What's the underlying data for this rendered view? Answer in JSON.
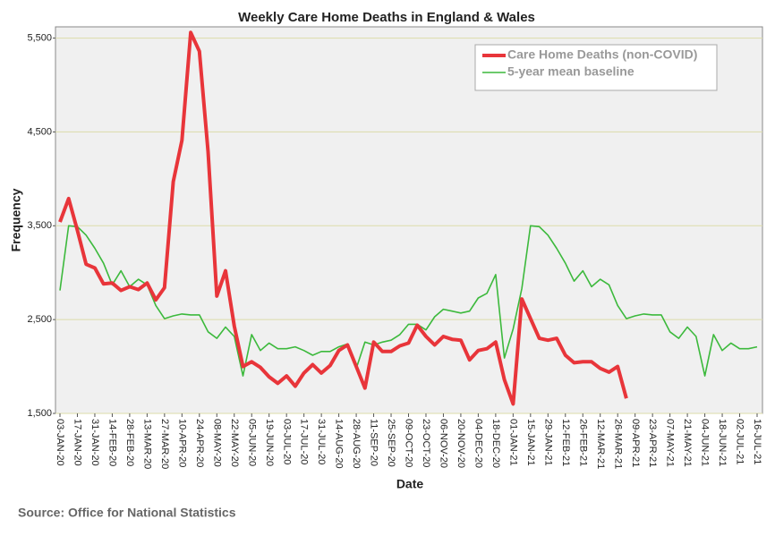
{
  "chart_data": {
    "type": "line",
    "title": "Weekly Care Home Deaths in England & Wales",
    "x_label": "Date",
    "y_label": "Frequency",
    "source": "Source: Office for National Statistics",
    "categories": [
      "03-JAN-20",
      null,
      "17-JAN-20",
      null,
      "31-JAN-20",
      null,
      "14-FEB-20",
      null,
      "28-FEB-20",
      null,
      "13-MAR-20",
      null,
      "27-MAR-20",
      null,
      "10-APR-20",
      null,
      "24-APR-20",
      null,
      "08-MAY-20",
      null,
      "22-MAY-20",
      null,
      "05-JUN-20",
      null,
      "19-JUN-20",
      null,
      "03-JUL-20",
      null,
      "17-JUL-20",
      null,
      "31-JUL-20",
      null,
      "14-AUG-20",
      null,
      "28-AUG-20",
      null,
      "11-SEP-20",
      null,
      "25-SEP-20",
      null,
      "09-OCT-20",
      null,
      "23-OCT-20",
      null,
      "06-NOV-20",
      null,
      "20-NOV-20",
      null,
      "04-DEC-20",
      null,
      "18-DEC-20",
      null,
      "01-JAN-21",
      null,
      "15-JAN-21",
      null,
      "29-JAN-21",
      null,
      "12-FEB-21",
      null,
      "26-FEB-21",
      null,
      "12-MAR-21",
      null,
      "26-MAR-21",
      null,
      "09-APR-21",
      null,
      "23-APR-21",
      null,
      "07-MAY-21",
      null,
      "21-MAY-21",
      null,
      "04-JUN-21",
      null,
      "18-JUN-21",
      null,
      "02-JUL-21",
      null,
      "16-JUL-21"
    ],
    "series": [
      {
        "name": "Care Home Deaths (non-COVID)",
        "color": "#e8353a",
        "width": 4,
        "values": [
          3540,
          3790,
          3450,
          3090,
          3050,
          2880,
          2890,
          2810,
          2850,
          2820,
          2890,
          2710,
          2840,
          3970,
          4410,
          5560,
          5360,
          4290,
          2750,
          3020,
          2430,
          2000,
          2050,
          1990,
          1890,
          1820,
          1900,
          1790,
          1930,
          2020,
          1930,
          2010,
          2170,
          2230,
          2000,
          1770,
          2260,
          2160,
          2160,
          2220,
          2250,
          2440,
          2320,
          2230,
          2320,
          2290,
          2280,
          2070,
          2170,
          2190,
          2260,
          1860,
          1600,
          2720,
          2510,
          2300,
          2280,
          2300,
          2120,
          2040,
          2050,
          2050,
          1980,
          1940,
          2000,
          1660,
          null,
          null,
          null,
          null,
          null,
          null,
          null,
          null,
          null,
          null,
          null,
          null,
          null,
          null,
          null
        ]
      },
      {
        "name": "5-year mean baseline",
        "color": "#3cb93c",
        "width": 1.6,
        "values": [
          2810,
          3500,
          3490,
          3400,
          3260,
          3100,
          2870,
          3020,
          2850,
          2930,
          2870,
          2650,
          2510,
          2540,
          2560,
          2550,
          2550,
          2370,
          2300,
          2420,
          2320,
          1900,
          2340,
          2170,
          2250,
          2190,
          2190,
          2210,
          2170,
          2120,
          2160,
          2160,
          2210,
          2240,
          1980,
          2260,
          2230,
          2260,
          2280,
          2340,
          2450,
          2450,
          2390,
          2530,
          2610,
          2590,
          2570,
          2590,
          2730,
          2780,
          2980,
          2090,
          2400,
          2830,
          3500,
          3490,
          3400,
          3260,
          3100,
          2910,
          3020,
          2850,
          2930,
          2870,
          2650,
          2510,
          2540,
          2560,
          2550,
          2550,
          2370,
          2300,
          2420,
          2320,
          1900,
          2340,
          2170,
          2250,
          2190,
          2190,
          2210
        ]
      }
    ],
    "ylim": [
      1500,
      5620
    ],
    "yticks": [
      {
        "value": 1500,
        "label": "1,500"
      },
      {
        "value": 2500,
        "label": "2,500"
      },
      {
        "value": 3500,
        "label": "3,500"
      },
      {
        "value": 4500,
        "label": "4,500"
      },
      {
        "value": 5500,
        "label": "5,500"
      }
    ],
    "grid": true,
    "legend": "top-right"
  }
}
